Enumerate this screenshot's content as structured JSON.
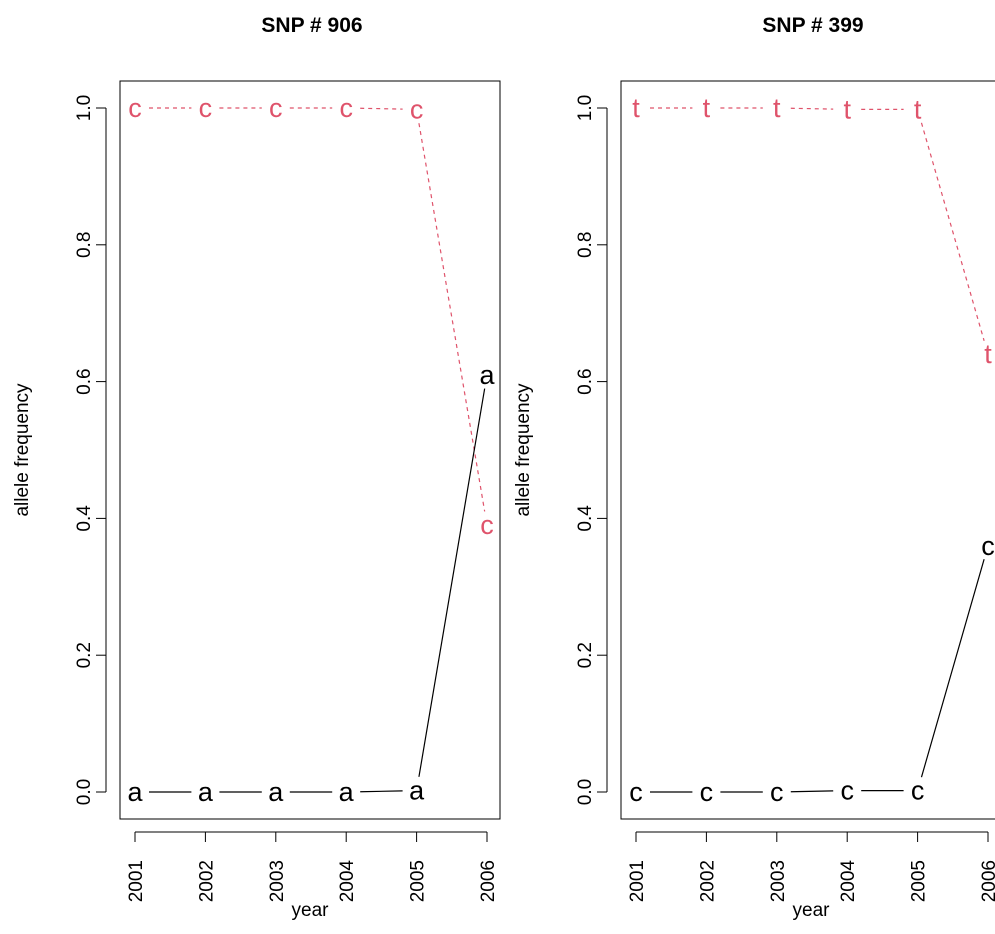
{
  "chart_data": [
    {
      "type": "line",
      "title": "SNP # 906",
      "xlabel": "year",
      "ylabel": "allele frequency",
      "x": [
        "2001",
        "2002",
        "2003",
        "2004",
        "2005",
        "2006"
      ],
      "xlim": [
        2001,
        2006
      ],
      "ylim": [
        0,
        1
      ],
      "yticks": [
        "0.0",
        "0.2",
        "0.4",
        "0.6",
        "0.8",
        "1.0"
      ],
      "grid": false,
      "series": [
        {
          "label": "c",
          "color": "#DF536B",
          "line_style": "dashed",
          "values": [
            1.0,
            1.0,
            1.0,
            1.0,
            0.998,
            0.39
          ]
        },
        {
          "label": "a",
          "color": "#000000",
          "line_style": "solid",
          "values": [
            0.0,
            0.0,
            0.0,
            0.0,
            0.002,
            0.61
          ]
        }
      ]
    },
    {
      "type": "line",
      "title": "SNP # 399",
      "xlabel": "year",
      "ylabel": "allele frequency",
      "x": [
        "2001",
        "2002",
        "2003",
        "2004",
        "2005",
        "2006"
      ],
      "xlim": [
        2001,
        2006
      ],
      "ylim": [
        0,
        1
      ],
      "yticks": [
        "0.0",
        "0.2",
        "0.4",
        "0.6",
        "0.8",
        "1.0"
      ],
      "grid": false,
      "series": [
        {
          "label": "t",
          "color": "#DF536B",
          "line_style": "dashed",
          "values": [
            1.0,
            1.0,
            1.0,
            0.998,
            0.998,
            0.64
          ]
        },
        {
          "label": "c",
          "color": "#000000",
          "line_style": "solid",
          "values": [
            0.0,
            0.0,
            0.0,
            0.002,
            0.002,
            0.36
          ]
        }
      ]
    }
  ]
}
